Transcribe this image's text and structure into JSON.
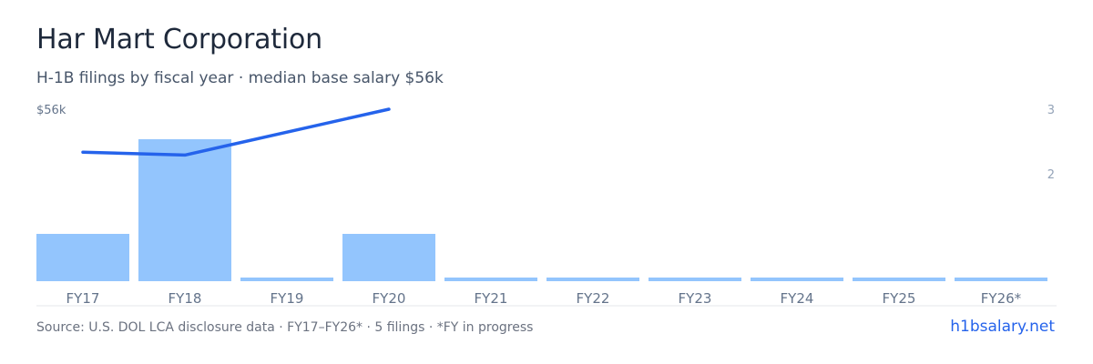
{
  "header": {
    "title": "Har Mart Corporation",
    "subtitle": "H-1B filings by fiscal year · median base salary $56k"
  },
  "footer": {
    "source": "Source: U.S. DOL LCA disclosure data · FY17–FY26* · 5 filings · *FY in progress",
    "site": "h1bsalary.net"
  },
  "colors": {
    "bar": "#93c5fd",
    "line": "#2563eb",
    "axis_text": "#94a3b8",
    "tick_text": "#64748b",
    "baseline": "#e5e7eb"
  },
  "chart_data": {
    "type": "bar",
    "categories": [
      "FY17",
      "FY18",
      "FY19",
      "FY20",
      "FY21",
      "FY22",
      "FY23",
      "FY24",
      "FY25",
      "FY26*"
    ],
    "series": [
      {
        "type": "bar",
        "axis": "right",
        "values": [
          1,
          3,
          0,
          1,
          0,
          0,
          0,
          0,
          0,
          0
        ]
      },
      {
        "type": "line",
        "axis": "left",
        "values": [
          54.5,
          54.4,
          null,
          56,
          null,
          null,
          null,
          null,
          null,
          null
        ]
      }
    ],
    "left_axis": {
      "label": "$56k",
      "range": [
        50,
        56
      ]
    },
    "right_axis": {
      "ticks": [
        "3",
        "2"
      ],
      "range": [
        0,
        3
      ]
    },
    "grid": false,
    "legend": "none"
  }
}
